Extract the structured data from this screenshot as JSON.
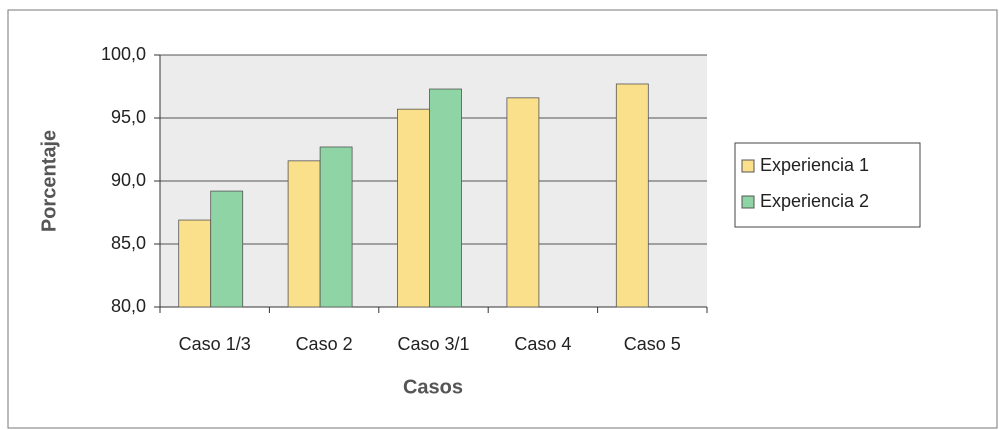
{
  "chart_data": {
    "type": "bar",
    "categories": [
      "Caso 1/3",
      "Caso 2",
      "Caso 3/1",
      "Caso 4",
      "Caso 5"
    ],
    "series": [
      {
        "name": "Experiencia 1",
        "color": "#fbe08c",
        "values": [
          86.9,
          91.6,
          95.7,
          96.6,
          97.7
        ]
      },
      {
        "name": "Experiencia 2",
        "color": "#8fd4a4",
        "values": [
          89.2,
          92.7,
          97.3,
          null,
          null
        ]
      }
    ],
    "xlabel": "Casos",
    "ylabel": "Porcentaje",
    "ylim": [
      80,
      100
    ],
    "yticks": [
      {
        "value": 80,
        "label": "80,0"
      },
      {
        "value": 85,
        "label": "85,0"
      },
      {
        "value": 90,
        "label": "90,0"
      },
      {
        "value": 95,
        "label": "95,0"
      },
      {
        "value": 100,
        "label": "100,0"
      }
    ],
    "grid": true,
    "legend": "right"
  }
}
